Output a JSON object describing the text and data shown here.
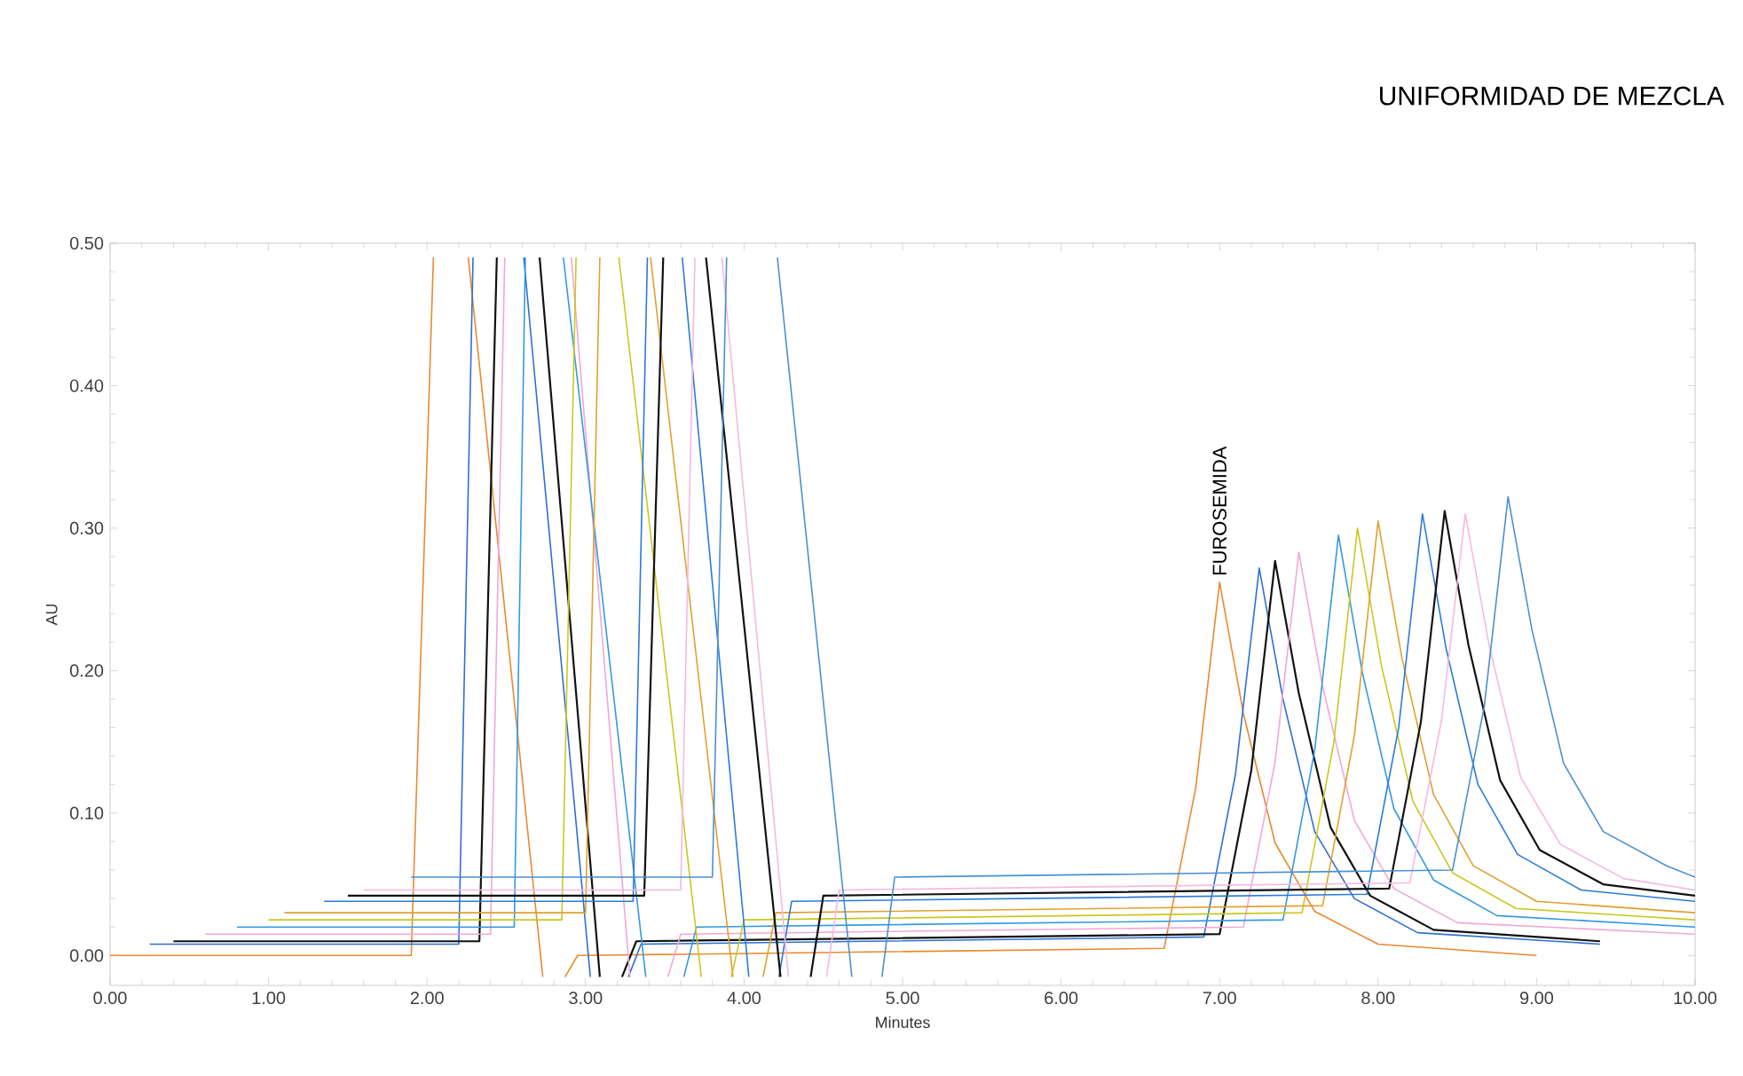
{
  "chart_data": {
    "type": "line",
    "title": "UNIFORMIDAD DE MEZCLA",
    "xlabel": "Minutes",
    "ylabel": "AU",
    "xlim": [
      0,
      10
    ],
    "ylim": [
      -0.021,
      0.5
    ],
    "xticks": [
      {
        "value": 0,
        "label": "0.00"
      },
      {
        "value": 1,
        "label": "1.00"
      },
      {
        "value": 2,
        "label": "2.00"
      },
      {
        "value": 3,
        "label": "3.00"
      },
      {
        "value": 4,
        "label": "4.00"
      },
      {
        "value": 5,
        "label": "5.00"
      },
      {
        "value": 6,
        "label": "6.00"
      },
      {
        "value": 7,
        "label": "7.00"
      },
      {
        "value": 8,
        "label": "8.00"
      },
      {
        "value": 9,
        "label": "9.00"
      },
      {
        "value": 10,
        "label": "10.00"
      }
    ],
    "yticks": [
      {
        "value": 0,
        "label": "0.00"
      },
      {
        "value": 0.1,
        "label": "0.10"
      },
      {
        "value": 0.2,
        "label": "0.20"
      },
      {
        "value": 0.3,
        "label": "0.30"
      },
      {
        "value": 0.4,
        "label": "0.40"
      },
      {
        "value": 0.5,
        "label": "0.50"
      }
    ],
    "annotations": [
      {
        "text": "FUROSEMIDA",
        "x": 7.0,
        "y": 0.262
      }
    ],
    "series": [
      {
        "color": "#e8892f",
        "x": [
          0,
          1.9,
          2.04,
          2.15,
          2.26,
          2.73,
          2.8,
          2.87,
          2.95,
          6.65,
          6.85,
          7.0,
          7.15,
          7.35,
          7.6,
          8.0,
          9.0
        ],
        "values": [
          0,
          0,
          0.49,
          null,
          0.49,
          -0.015,
          null,
          -0.015,
          0,
          0.005,
          0.118,
          0.262,
          0.17,
          0.079,
          0.031,
          0.008,
          0
        ]
      },
      {
        "color": "#2f6fd0",
        "x": [
          0.25,
          2.2,
          2.29,
          2.45,
          2.61,
          3.03,
          3.15,
          3.27,
          3.35,
          6.9,
          7.1,
          7.25,
          7.4,
          7.6,
          7.85,
          8.25,
          9.4
        ],
        "values": [
          0.008,
          0.008,
          0.49,
          null,
          0.49,
          -0.015,
          null,
          -0.015,
          0.008,
          0.013,
          0.127,
          0.272,
          0.18,
          0.087,
          0.04,
          0.016,
          0.008
        ]
      },
      {
        "color": "#111111",
        "x": [
          0.4,
          2.33,
          2.44,
          2.58,
          2.71,
          3.09,
          3.16,
          3.23,
          3.32,
          7.0,
          7.2,
          7.35,
          7.5,
          7.7,
          7.95,
          8.35,
          9.4
        ],
        "values": [
          0.01,
          0.01,
          0.49,
          null,
          0.49,
          -0.015,
          null,
          -0.015,
          0.01,
          0.015,
          0.13,
          0.277,
          0.184,
          0.09,
          0.042,
          0.018,
          0.01
        ]
      },
      {
        "color": "#f0a8d8",
        "x": [
          0.6,
          2.4,
          2.49,
          2.7,
          2.91,
          3.28,
          3.4,
          3.52,
          3.6,
          7.15,
          7.35,
          7.5,
          7.65,
          7.85,
          8.1,
          8.5,
          10
        ],
        "values": [
          0.015,
          0.015,
          0.49,
          null,
          0.49,
          -0.015,
          null,
          -0.015,
          0.015,
          0.02,
          0.136,
          0.283,
          0.189,
          0.095,
          0.047,
          0.023,
          0.015
        ]
      },
      {
        "color": "#3399e0",
        "x": [
          0.8,
          2.55,
          2.62,
          2.74,
          2.86,
          3.38,
          3.5,
          3.62,
          3.7,
          7.4,
          7.6,
          7.75,
          7.9,
          8.1,
          8.35,
          8.75,
          10
        ],
        "values": [
          0.02,
          0.02,
          0.49,
          null,
          0.49,
          -0.015,
          null,
          -0.015,
          0.02,
          0.025,
          0.144,
          0.295,
          0.199,
          0.103,
          0.053,
          0.028,
          0.02
        ]
      },
      {
        "color": "#c8c820",
        "x": [
          1.0,
          2.85,
          2.94,
          3.08,
          3.21,
          3.73,
          3.82,
          3.92,
          4.0,
          7.52,
          7.72,
          7.87,
          8.02,
          8.22,
          8.47,
          8.87,
          10
        ],
        "values": [
          0.025,
          0.025,
          0.49,
          null,
          0.49,
          -0.015,
          null,
          -0.015,
          0.025,
          0.03,
          0.149,
          0.3,
          0.204,
          0.108,
          0.058,
          0.033,
          0.025
        ]
      },
      {
        "color": "#e0a030",
        "x": [
          1.1,
          3.0,
          3.09,
          3.25,
          3.41,
          3.93,
          4.02,
          4.12,
          4.2,
          7.65,
          7.85,
          8.0,
          8.15,
          8.35,
          8.6,
          9.0,
          10
        ],
        "values": [
          0.03,
          0.03,
          0.49,
          null,
          0.49,
          -0.015,
          null,
          -0.015,
          0.03,
          0.035,
          0.154,
          0.305,
          0.209,
          0.113,
          0.063,
          0.038,
          0.03
        ]
      },
      {
        "color": "#2a7ad8",
        "x": [
          1.35,
          3.3,
          3.39,
          3.5,
          3.61,
          4.03,
          4.12,
          4.22,
          4.3,
          7.93,
          8.13,
          8.28,
          8.43,
          8.63,
          8.88,
          9.28,
          10
        ],
        "values": [
          0.038,
          0.038,
          0.49,
          null,
          0.49,
          -0.015,
          null,
          -0.015,
          0.038,
          0.043,
          0.16,
          0.31,
          0.215,
          0.12,
          0.071,
          0.046,
          0.038
        ]
      },
      {
        "color": "#111111",
        "x": [
          1.5,
          3.37,
          3.49,
          3.62,
          3.76,
          4.23,
          4.32,
          4.42,
          4.5,
          8.07,
          8.27,
          8.42,
          8.57,
          8.77,
          9.02,
          9.42,
          10
        ],
        "values": [
          0.042,
          0.042,
          0.49,
          null,
          0.49,
          -0.015,
          null,
          -0.015,
          0.042,
          0.047,
          0.164,
          0.312,
          0.218,
          0.123,
          0.074,
          0.05,
          0.042
        ]
      },
      {
        "color": "#f5b8e0",
        "x": [
          1.6,
          3.6,
          3.69,
          3.78,
          3.86,
          4.28,
          4.4,
          4.52,
          4.6,
          8.2,
          8.4,
          8.55,
          8.7,
          8.9,
          9.15,
          9.55,
          10
        ],
        "values": [
          0.046,
          0.046,
          0.49,
          null,
          0.49,
          -0.015,
          null,
          -0.015,
          0.046,
          0.051,
          0.165,
          0.31,
          0.218,
          0.125,
          0.078,
          0.054,
          0.046
        ]
      },
      {
        "color": "#4a90d0",
        "x": [
          1.9,
          3.8,
          3.89,
          4.05,
          4.21,
          4.68,
          4.78,
          4.87,
          4.95,
          8.47,
          8.67,
          8.82,
          8.97,
          9.17,
          9.42,
          9.82,
          10
        ],
        "values": [
          0.055,
          0.055,
          0.49,
          null,
          0.49,
          -0.015,
          null,
          -0.015,
          0.055,
          0.06,
          0.175,
          0.322,
          0.229,
          0.135,
          0.087,
          0.063,
          0.055
        ]
      }
    ]
  }
}
